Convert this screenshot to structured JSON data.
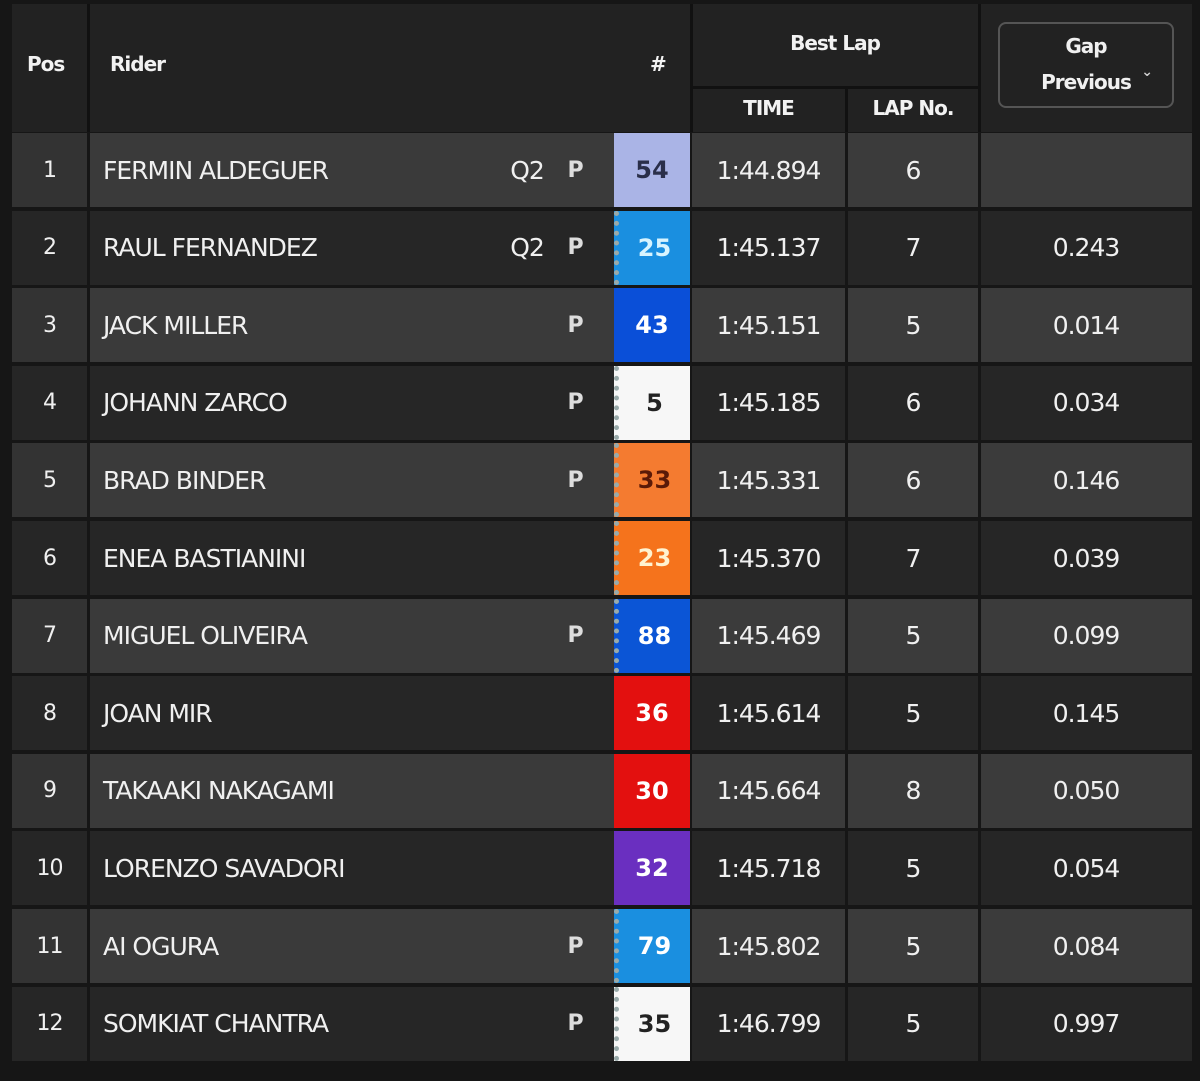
{
  "header": {
    "pos": "Pos",
    "rider": "Rider",
    "number": "#",
    "best_lap": "Best Lap",
    "time": "TIME",
    "lap_no": "LAP No.",
    "gap_line1": "Gap",
    "gap_line2": "Previous",
    "gap_icon": "chevron-down-icon"
  },
  "rows": [
    {
      "pos": "1",
      "rider": "FERMIN ALDEGUER",
      "q": "Q2",
      "tyre": true,
      "number": "54",
      "bg": "#aab4e6",
      "fg": "#2a2f4a",
      "flag": false,
      "time": "1:44.894",
      "lap": "6",
      "gap": ""
    },
    {
      "pos": "2",
      "rider": "RAUL FERNANDEZ",
      "q": "Q2",
      "tyre": true,
      "number": "25",
      "bg": "#1a8fe0",
      "fg": "#d8f4ff",
      "flag": true,
      "time": "1:45.137",
      "lap": "7",
      "gap": "0.243"
    },
    {
      "pos": "3",
      "rider": "JACK MILLER",
      "q": "",
      "tyre": true,
      "number": "43",
      "bg": "#0a4fd8",
      "fg": "#ffffff",
      "flag": false,
      "time": "1:45.151",
      "lap": "5",
      "gap": "0.014"
    },
    {
      "pos": "4",
      "rider": "JOHANN ZARCO",
      "q": "",
      "tyre": true,
      "number": "5",
      "bg": "#f7f7f7",
      "fg": "#222222",
      "flag": true,
      "time": "1:45.185",
      "lap": "6",
      "gap": "0.034"
    },
    {
      "pos": "5",
      "rider": "BRAD BINDER",
      "q": "",
      "tyre": true,
      "number": "33",
      "bg": "#f47b30",
      "fg": "#5a1a08",
      "flag": true,
      "time": "1:45.331",
      "lap": "6",
      "gap": "0.146"
    },
    {
      "pos": "6",
      "rider": "ENEA BASTIANINI",
      "q": "",
      "tyre": false,
      "number": "23",
      "bg": "#f5731c",
      "fg": "#fff3d0",
      "flag": true,
      "time": "1:45.370",
      "lap": "7",
      "gap": "0.039"
    },
    {
      "pos": "7",
      "rider": "MIGUEL OLIVEIRA",
      "q": "",
      "tyre": true,
      "number": "88",
      "bg": "#0b55d6",
      "fg": "#ffffff",
      "flag": true,
      "time": "1:45.469",
      "lap": "5",
      "gap": "0.099"
    },
    {
      "pos": "8",
      "rider": "JOAN MIR",
      "q": "",
      "tyre": false,
      "number": "36",
      "bg": "#e3100f",
      "fg": "#ffffff",
      "flag": false,
      "time": "1:45.614",
      "lap": "5",
      "gap": "0.145"
    },
    {
      "pos": "9",
      "rider": "TAKAAKI NAKAGAMI",
      "q": "",
      "tyre": false,
      "number": "30",
      "bg": "#e3100f",
      "fg": "#ffffff",
      "flag": false,
      "time": "1:45.664",
      "lap": "8",
      "gap": "0.050"
    },
    {
      "pos": "10",
      "rider": "LORENZO SAVADORI",
      "q": "",
      "tyre": false,
      "number": "32",
      "bg": "#6a2fc0",
      "fg": "#ffffff",
      "flag": false,
      "time": "1:45.718",
      "lap": "5",
      "gap": "0.054"
    },
    {
      "pos": "11",
      "rider": "AI OGURA",
      "q": "",
      "tyre": true,
      "number": "79",
      "bg": "#1a8fe0",
      "fg": "#ffffff",
      "flag": true,
      "time": "1:45.802",
      "lap": "5",
      "gap": "0.084"
    },
    {
      "pos": "12",
      "rider": "SOMKIAT CHANTRA",
      "q": "",
      "tyre": true,
      "number": "35",
      "bg": "#f7f7f7",
      "fg": "#222222",
      "flag": true,
      "time": "1:46.799",
      "lap": "5",
      "gap": "0.997"
    }
  ],
  "tyre_icon": {
    "name": "tyre-brand-icon",
    "glyph": "P"
  }
}
